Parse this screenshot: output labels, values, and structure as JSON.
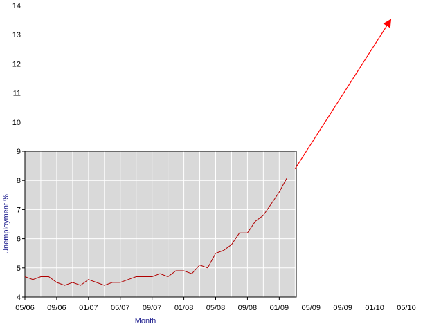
{
  "colors": {
    "plot_background": "#d9d9d9",
    "grid": "#ffffff",
    "series": "#b00000",
    "arrow": "#ff0000",
    "axis_title": "#1a1a8c"
  },
  "chart_data": {
    "type": "line",
    "title": "",
    "xlabel": "Month",
    "ylabel": "Unemployment %",
    "grid": true,
    "legend": "none",
    "x_tick_labels": [
      "05/06",
      "09/06",
      "01/07",
      "05/07",
      "09/07",
      "01/08",
      "05/08",
      "09/08",
      "01/09",
      "05/09",
      "09/09",
      "01/10",
      "05/10"
    ],
    "y_tick_labels": [
      4,
      5,
      6,
      7,
      8,
      9,
      10,
      11,
      12,
      13,
      14
    ],
    "xlim": [
      "2006-05",
      "2010-05"
    ],
    "ylim": [
      4,
      14
    ],
    "plot_area_ylim": [
      4,
      9
    ],
    "series": [
      {
        "x": [
          "2006-05",
          "2006-06",
          "2006-07",
          "2006-08",
          "2006-09",
          "2006-10",
          "2006-11",
          "2006-12",
          "2007-01",
          "2007-02",
          "2007-03",
          "2007-04",
          "2007-05",
          "2007-06",
          "2007-07",
          "2007-08",
          "2007-09",
          "2007-10",
          "2007-11",
          "2007-12",
          "2008-01",
          "2008-02",
          "2008-03",
          "2008-04",
          "2008-05",
          "2008-06",
          "2008-07",
          "2008-08",
          "2008-09",
          "2008-10",
          "2008-11",
          "2008-12",
          "2009-01",
          "2009-02"
        ],
        "values": [
          4.7,
          4.6,
          4.7,
          4.7,
          4.5,
          4.4,
          4.5,
          4.4,
          4.6,
          4.5,
          4.4,
          4.5,
          4.5,
          4.6,
          4.7,
          4.7,
          4.7,
          4.8,
          4.7,
          4.9,
          4.9,
          4.8,
          5.1,
          5.0,
          5.5,
          5.6,
          5.8,
          6.2,
          6.2,
          6.6,
          6.8,
          7.2,
          7.6,
          8.1
        ]
      }
    ],
    "annotations": [
      {
        "type": "arrow",
        "from": {
          "x": "2009-03",
          "y": 8.4
        },
        "to": {
          "x": "2010-03",
          "y": 13.5
        }
      }
    ]
  }
}
